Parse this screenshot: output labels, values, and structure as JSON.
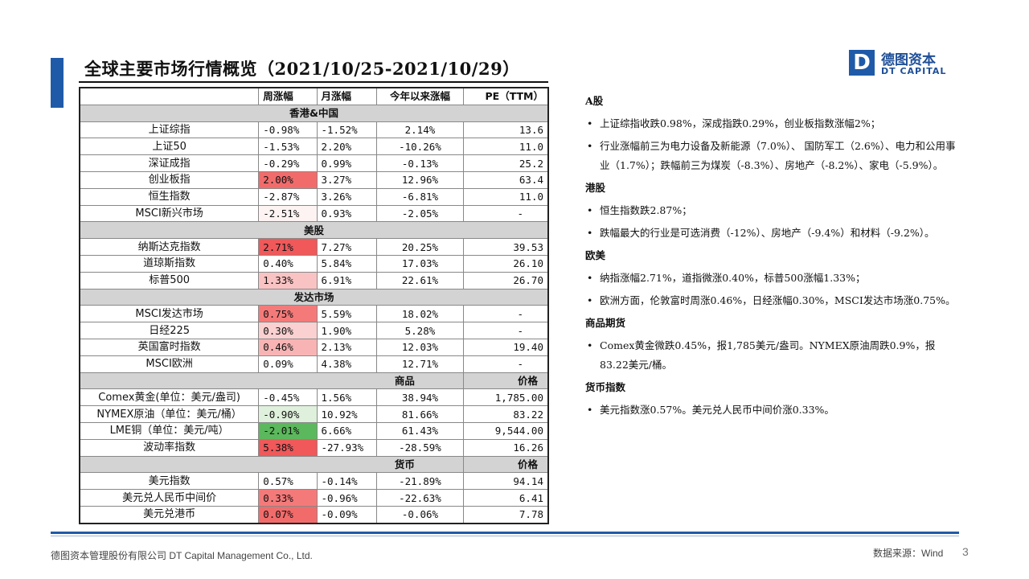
{
  "title": "全球主要市场行情概览（2021/10/25-2021/10/29）",
  "logo": {
    "mark": "D",
    "cn": "德图资本",
    "en": "DT CAPITAL"
  },
  "table": {
    "headers": [
      "",
      "周涨幅",
      "月涨幅",
      "今年以来涨幅",
      "PE（TTM）"
    ],
    "sections": [
      {
        "label": "香港&中国",
        "price_label": "",
        "rows": [
          [
            "上证综指",
            "-0.98%",
            "-1.52%",
            "2.14%",
            "13.6"
          ],
          [
            "上证50",
            "-1.53%",
            "2.20%",
            "-10.26%",
            "11.0"
          ],
          [
            "深证成指",
            "-0.29%",
            "0.99%",
            "-0.13%",
            "25.2"
          ],
          [
            "创业板指",
            "2.00%",
            "3.27%",
            "12.96%",
            "63.4"
          ],
          [
            "恒生指数",
            "-2.87%",
            "3.26%",
            "-6.81%",
            "11.0"
          ],
          [
            "MSCI新兴市场",
            "-2.51%",
            "0.93%",
            "-2.05%",
            "-"
          ]
        ]
      },
      {
        "label": "美股",
        "price_label": "",
        "rows": [
          [
            "纳斯达克指数",
            "2.71%",
            "7.27%",
            "20.25%",
            "39.53"
          ],
          [
            "道琼斯指数",
            "0.40%",
            "5.84%",
            "17.03%",
            "26.10"
          ],
          [
            "标普500",
            "1.33%",
            "6.91%",
            "22.61%",
            "26.70"
          ]
        ]
      },
      {
        "label": "发达市场",
        "price_label": "",
        "rows": [
          [
            "MSCI发达市场",
            "0.75%",
            "5.59%",
            "18.02%",
            "-"
          ],
          [
            "日经225",
            "0.30%",
            "1.90%",
            "5.28%",
            "-"
          ],
          [
            "英国富时指数",
            "0.46%",
            "2.13%",
            "12.03%",
            "19.40"
          ],
          [
            "MSCI欧洲",
            "0.09%",
            "4.38%",
            "12.71%",
            "-"
          ]
        ]
      },
      {
        "label": "商品",
        "price_label": "价格",
        "rows": [
          [
            "Comex黄金(单位：美元/盎司)",
            "-0.45%",
            "1.56%",
            "38.94%",
            "1,785.00"
          ],
          [
            "NYMEX原油（单位：美元/桶）",
            "-0.90%",
            "10.92%",
            "81.66%",
            "83.22"
          ],
          [
            "LME铜（单位：美元/吨）",
            "-2.01%",
            "6.66%",
            "61.43%",
            "9,544.00"
          ],
          [
            "波动率指数",
            "5.38%",
            "-27.93%",
            "-28.59%",
            "16.26"
          ]
        ]
      },
      {
        "label": "货币",
        "price_label": "价格",
        "rows": [
          [
            "美元指数",
            "0.57%",
            "-0.14%",
            "-21.89%",
            "94.14"
          ],
          [
            "美元兑人民币中间价",
            "0.33%",
            "-0.96%",
            "-22.63%",
            "6.41"
          ],
          [
            "美元兑港币",
            "0.07%",
            "-0.09%",
            "-0.06%",
            "7.78"
          ]
        ]
      }
    ],
    "highlight_colors": {
      "上证综指": "#ffffff",
      "上证50": "#ffffff",
      "深证成指": "#ffffff",
      "创业板指": "#f26b6b",
      "恒生指数": "#ffffff",
      "MSCI新兴市场": "#fdf3f3",
      "纳斯达克指数": "#f0585a",
      "道琼斯指数": "#ffffff",
      "标普500": "#f9c3c3",
      "MSCI发达市场": "#f47a7a",
      "日经225": "#fad0d0",
      "英国富时指数": "#f8b4b4",
      "MSCI欧洲": "#ffffff",
      "Comex黄金(单位：美元/盎司)": "#ffffff",
      "NYMEX原油（单位：美元/桶）": "#dff0dc",
      "LME铜（单位：美元/吨）": "#5cb85c",
      "波动率指数": "#f0585a",
      "美元指数": "#ffffff",
      "美元兑人民币中间价": "#f47a7a",
      "美元兑港币": "#f26b6b"
    }
  },
  "commentary": [
    {
      "heading": "A股",
      "bullets": [
        "上证综指收跌0.98%，深成指跌0.29%，创业板指数涨幅2%；",
        "行业涨幅前三为电力设备及新能源（7.0%）、 国防军工（2.6%）、电力和公用事业（1.7%）；跌幅前三为煤炭（-8.3%）、房地产（-8.2%）、家电（-5.9%）。"
      ]
    },
    {
      "heading": "港股",
      "bullets": [
        "恒生指数跌2.87%；",
        "跌幅最大的行业是可选消费（-12%）、房地产（-9.4%）和材料（-9.2%）。"
      ]
    },
    {
      "heading": "欧美",
      "bullets": [
        "纳指涨幅2.71%，道指微涨0.40%，标普500涨幅1.33%；",
        "欧洲方面，伦敦富时周涨0.46%，日经涨幅0.30%，MSCI发达市场涨0.75%。"
      ]
    },
    {
      "heading": "商品期货",
      "bullets": [
        "Comex黄金微跌0.45%，报1,785美元/盎司。NYMEX原油周跌0.9%，报83.22美元/桶。"
      ]
    },
    {
      "heading": "货币指数",
      "bullets": [
        "美元指数涨0.57%。美元兑人民币中间价涨0.33%。"
      ]
    }
  ],
  "footer": {
    "company": "德图资本管理股份有限公司 DT Capital Management Co., Ltd.",
    "source": "数据来源：Wind",
    "page": "3"
  },
  "colors": {
    "accent": "#1f5aa8",
    "section_bg": "#d3d3d3"
  }
}
